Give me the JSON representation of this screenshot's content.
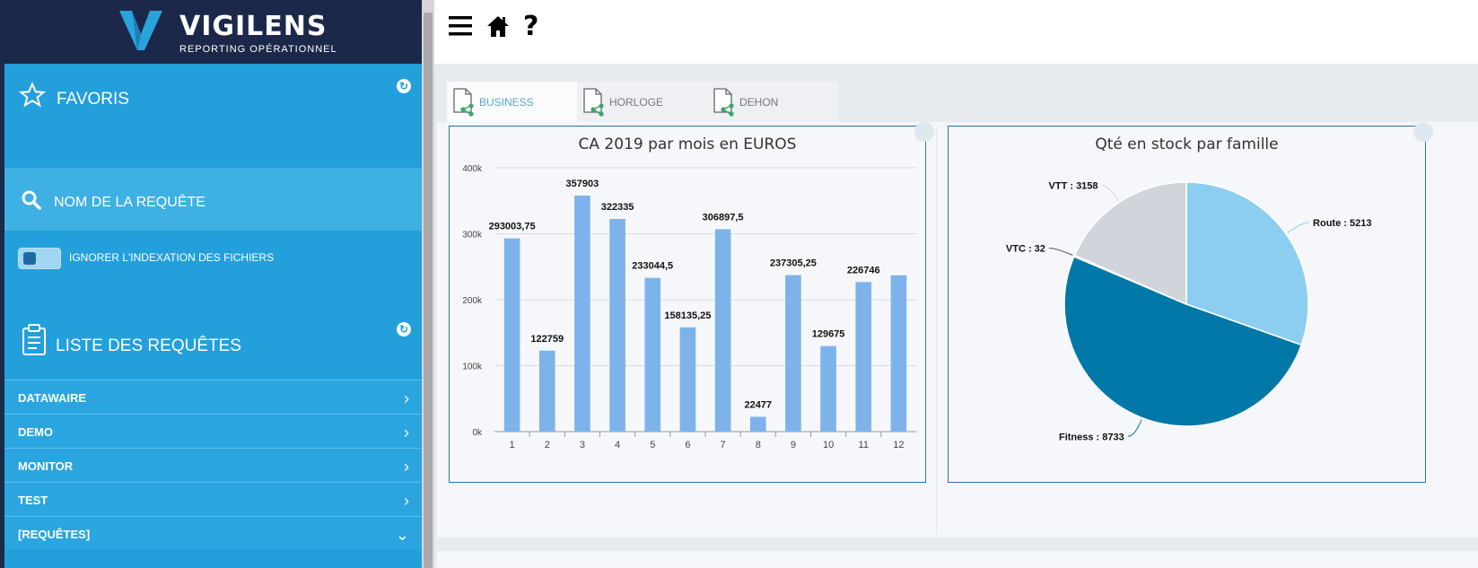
{
  "brand": {
    "name": "VIGILENS",
    "tagline": "REPORTING OPÉRATIONNEL"
  },
  "sidebar": {
    "favoris_title": "FAVORIS",
    "search_label": "NOM DE LA REQUÊTE",
    "ignore_label": "IGNORER L'INDEXATION DES FICHIERS",
    "ignore_toggle_on": false,
    "list_title": "LISTE DES REQUÊTES",
    "items": [
      {
        "label": "DATAWAIRE",
        "chevron": "›"
      },
      {
        "label": "DEMO",
        "chevron": "›"
      },
      {
        "label": "MONITOR",
        "chevron": "›"
      },
      {
        "label": "TEST",
        "chevron": "›"
      },
      {
        "label": "[REQUÊTES]",
        "chevron": "⌄"
      }
    ]
  },
  "toolbar": {
    "icons": [
      "menu-icon",
      "home-icon",
      "help-icon"
    ],
    "help_glyph": "?"
  },
  "tabs": [
    {
      "label": "BUSINESS",
      "active": true
    },
    {
      "label": "HORLOGE",
      "active": false
    },
    {
      "label": "DEHON",
      "active": false
    }
  ],
  "chart_data": [
    {
      "type": "bar",
      "title": "CA 2019 par mois en EUROS",
      "categories": [
        "1",
        "2",
        "3",
        "4",
        "5",
        "6",
        "7",
        "8",
        "9",
        "10",
        "11",
        "12"
      ],
      "values": [
        293003.75,
        122759,
        357903,
        322335,
        233044.5,
        158135.25,
        306897.5,
        22477,
        237305.25,
        129675,
        226746,
        237000
      ],
      "data_labels": [
        "293003,75",
        "122759",
        "357903",
        "322335",
        "233044,5",
        "158135,25",
        "306897,5",
        "22477",
        "237305,25",
        "129675",
        "226746",
        ""
      ],
      "ylim": [
        0,
        400000
      ],
      "yticks": [
        0,
        100000,
        200000,
        300000,
        400000
      ],
      "ytick_labels": [
        "0k",
        "100k",
        "200k",
        "300k",
        "400k"
      ],
      "xlabel": "",
      "ylabel": "",
      "grid": true,
      "bar_color": "#7db3ea"
    },
    {
      "type": "pie",
      "title": "Qté en stock par famille",
      "slices": [
        {
          "label": "Route : 5213",
          "value": 5213,
          "color": "#8dcef0"
        },
        {
          "label": "Fitness : 8733",
          "value": 8733,
          "color": "#0178a8"
        },
        {
          "label": "VTC : 32",
          "value": 32,
          "color": "#ffffff"
        },
        {
          "label": "VTT : 3158",
          "value": 3158,
          "color": "#d1d5db"
        }
      ]
    }
  ]
}
